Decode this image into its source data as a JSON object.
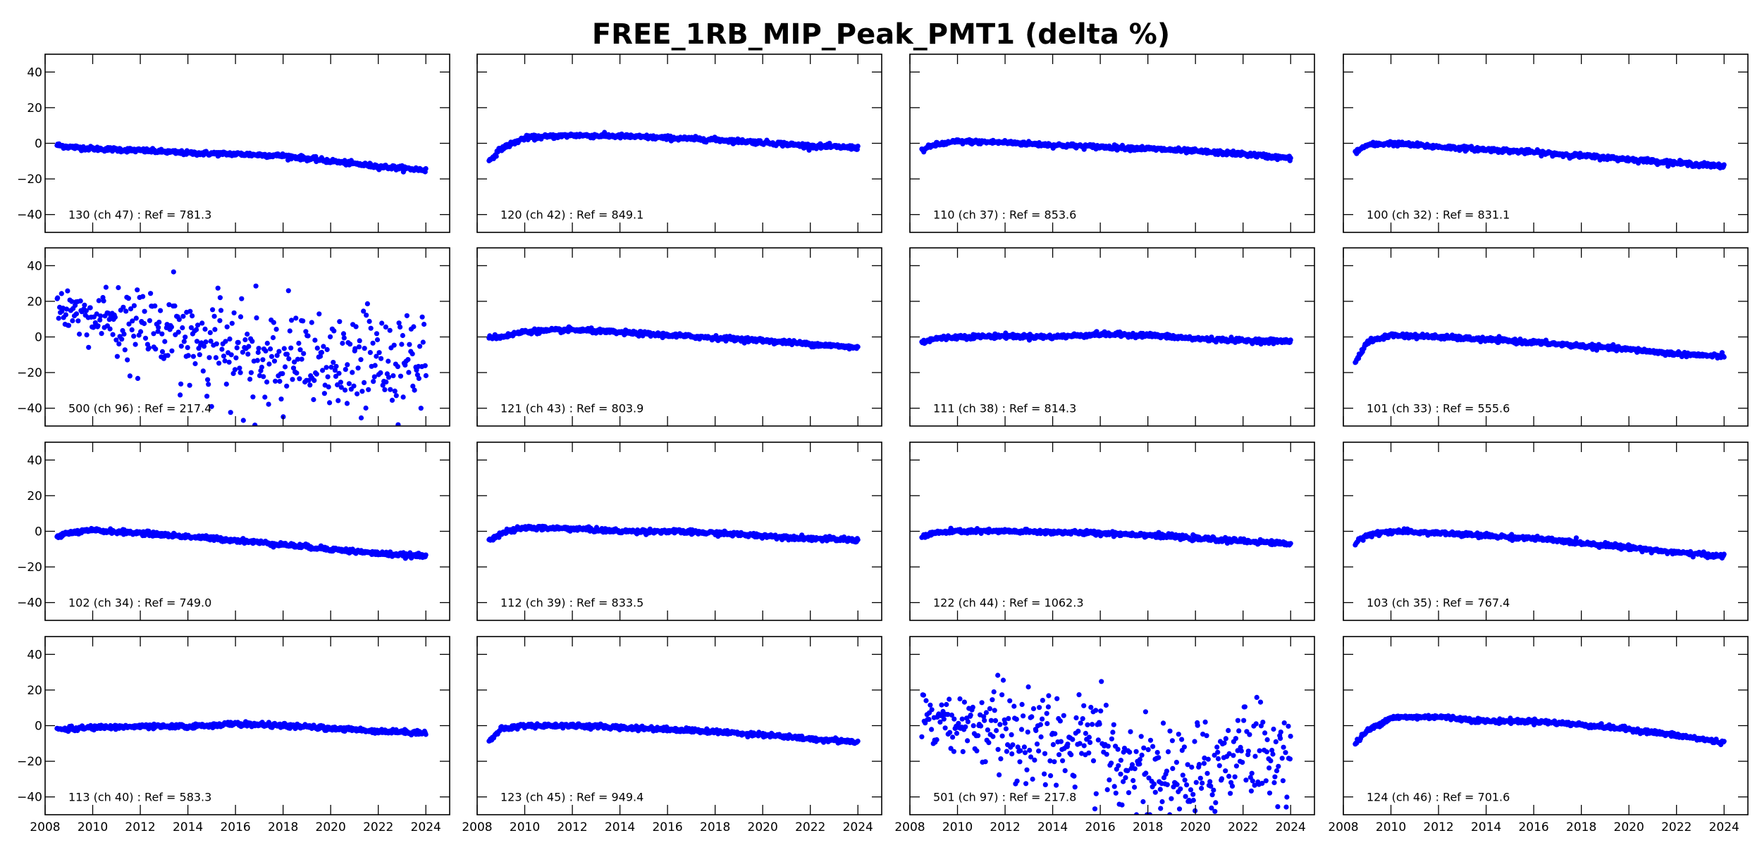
{
  "chart_data": {
    "type": "scatter",
    "title": "FREE_1RB_MIP_Peak_PMT1 (delta %)",
    "layout": "4x4 grid of subplots",
    "xlim": [
      2008,
      2025
    ],
    "ylim": [
      -50,
      50
    ],
    "xticks": [
      2008,
      2010,
      2012,
      2014,
      2016,
      2018,
      2020,
      2022,
      2024
    ],
    "yticks": [
      -40,
      -20,
      0,
      20,
      40
    ],
    "xtick_labels": [
      "2008",
      "2010",
      "2012",
      "2014",
      "2016",
      "2018",
      "2020",
      "2022",
      "2024"
    ],
    "ytick_labels": [
      "−40",
      "−20",
      "0",
      "20",
      "40"
    ],
    "marker_color": "#0000ff",
    "grid": false,
    "trend_x": [
      2008.5,
      2009,
      2010,
      2012,
      2014,
      2016,
      2018,
      2020,
      2022,
      2024
    ],
    "panels": [
      {
        "label": "130 (ch 47) : Ref = 781.3",
        "scatter": false,
        "trend_y": [
          -1,
          -2,
          -3,
          -4,
          -5.5,
          -6,
          -7,
          -10,
          -13,
          -15
        ]
      },
      {
        "label": "120 (ch 42) : Ref = 849.1",
        "scatter": false,
        "trend_y": [
          -10,
          -3,
          3,
          4.5,
          4,
          3,
          2,
          0.5,
          -1.5,
          -2.5
        ]
      },
      {
        "label": "110 (ch 37) : Ref = 853.6",
        "scatter": false,
        "trend_y": [
          -4,
          -1,
          1,
          0.5,
          -1,
          -2,
          -3,
          -4.5,
          -6,
          -8.5
        ]
      },
      {
        "label": "100 (ch 32) : Ref = 831.1",
        "scatter": false,
        "trend_y": [
          -5,
          -1,
          0,
          -2,
          -3.5,
          -5,
          -7,
          -9,
          -11,
          -13
        ]
      },
      {
        "label": "500 (ch 96) : Ref = 217.4",
        "scatter": true,
        "trend_y": [
          20,
          15,
          10,
          5,
          0,
          -10,
          -15,
          -20,
          -10,
          -15
        ]
      },
      {
        "label": "121 (ch 43) : Ref = 803.9",
        "scatter": false,
        "trend_y": [
          0,
          0,
          3,
          4,
          2.5,
          1,
          -0.5,
          -2,
          -4,
          -6
        ]
      },
      {
        "label": "111 (ch 38) : Ref = 814.3",
        "scatter": false,
        "trend_y": [
          -3,
          -1,
          0,
          0.5,
          0,
          1.5,
          1,
          -1,
          -2,
          -2.5
        ]
      },
      {
        "label": "101 (ch 33) : Ref = 555.6",
        "scatter": false,
        "trend_y": [
          -14,
          -3,
          1,
          0,
          -1.5,
          -3,
          -5,
          -7,
          -9.5,
          -11
        ]
      },
      {
        "label": "102 (ch 34) : Ref = 749.0",
        "scatter": false,
        "trend_y": [
          -3,
          -1,
          0.5,
          -1,
          -3,
          -5,
          -7.5,
          -10,
          -12.5,
          -14
        ]
      },
      {
        "label": "112 (ch 39) : Ref = 833.5",
        "scatter": false,
        "trend_y": [
          -5,
          -1,
          2,
          1.5,
          0,
          0,
          -1,
          -2.5,
          -4,
          -5
        ]
      },
      {
        "label": "122 (ch 44) : Ref = 1062.3",
        "scatter": false,
        "trend_y": [
          -3,
          -1,
          0,
          0,
          -0.5,
          -1,
          -2,
          -4,
          -5.5,
          -7
        ]
      },
      {
        "label": "103 (ch 35) : Ref = 767.4",
        "scatter": false,
        "trend_y": [
          -7,
          -2,
          0,
          -1,
          -2.5,
          -4,
          -6.5,
          -9,
          -12,
          -14
        ]
      },
      {
        "label": "113 (ch 40) : Ref = 583.3",
        "scatter": false,
        "trend_y": [
          -2,
          -2,
          -1,
          -0.5,
          -0.5,
          1,
          0,
          -1.5,
          -3,
          -4
        ]
      },
      {
        "label": "123 (ch 45) : Ref = 949.4",
        "scatter": false,
        "trend_y": [
          -9,
          -2,
          0,
          0,
          -1,
          -2,
          -3.5,
          -5,
          -7.5,
          -9
        ]
      },
      {
        "label": "501 (ch 97) : Ref = 217.8",
        "scatter": true,
        "trend_y": [
          8,
          5,
          0,
          -3,
          -5,
          -15,
          -25,
          -30,
          -10,
          -20
        ]
      },
      {
        "label": "124 (ch 46) : Ref = 701.6",
        "scatter": false,
        "trend_y": [
          -10,
          -3,
          4.5,
          5,
          2.5,
          2.5,
          0.5,
          -2,
          -5.5,
          -9.5
        ]
      }
    ]
  }
}
